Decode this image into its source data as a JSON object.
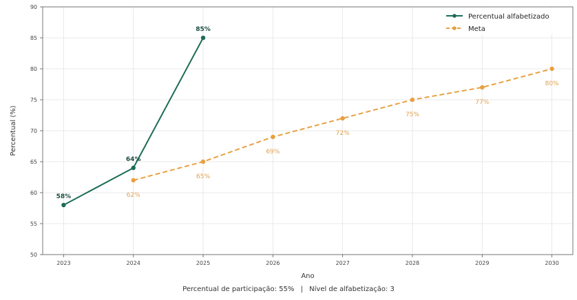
{
  "chart_data": {
    "type": "line",
    "title": "",
    "xlabel": "Ano",
    "ylabel": "Percentual (%)",
    "xlim": [
      2022.7,
      2030.3
    ],
    "ylim": [
      50,
      90
    ],
    "x_ticks": [
      2023,
      2024,
      2025,
      2026,
      2027,
      2028,
      2029,
      2030
    ],
    "y_ticks": [
      50,
      55,
      60,
      65,
      70,
      75,
      80,
      85,
      90
    ],
    "grid": true,
    "legend_position": "top-right",
    "series": [
      {
        "name": "Percentual alfabetizado",
        "color": "#1b6b57",
        "style": "solid",
        "marker": "circle",
        "x": [
          2023,
          2024,
          2025
        ],
        "y": [
          58,
          64,
          85
        ],
        "labels": [
          "58%",
          "64%",
          "85%"
        ]
      },
      {
        "name": "Meta",
        "color": "#e8a040",
        "style": "dashed",
        "marker": "circle",
        "x": [
          2024,
          2025,
          2026,
          2027,
          2028,
          2029,
          2030
        ],
        "y": [
          62,
          65,
          69,
          72,
          75,
          77,
          80
        ],
        "labels": [
          "62%",
          "65%",
          "69%",
          "72%",
          "75%",
          "77%",
          "80%"
        ]
      }
    ]
  },
  "footer": {
    "participation": "Percentual de participação: 55%",
    "separator": "|",
    "level": "Nível de alfabetização: 3"
  }
}
